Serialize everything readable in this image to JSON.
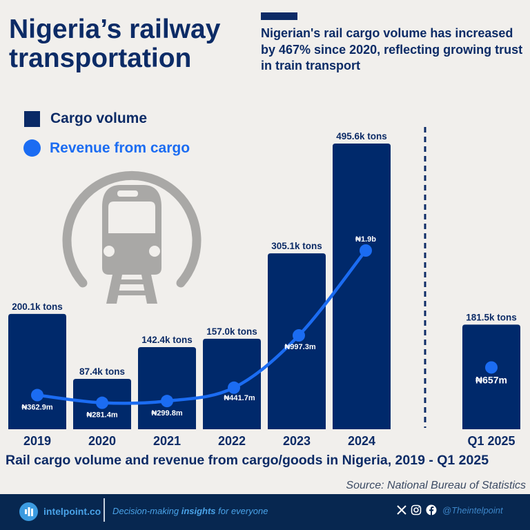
{
  "header": {
    "title_line1": "Nigeria’s railway",
    "title_line2": "transportation",
    "subtitle": "Nigerian's rail cargo volume has increased by 467% since 2020, reflecting growing trust in train transport"
  },
  "legend": {
    "cargo": "Cargo volume",
    "revenue": "Revenue from cargo"
  },
  "colors": {
    "bar": "#00296b",
    "line": "#1b6cf2",
    "title": "#0c2b66",
    "icon": "#a9a8a6",
    "footer": "#072750"
  },
  "chart_data": {
    "type": "bar",
    "title": "Rail cargo volume and revenue from cargo/goods in Nigeria, 2019 - Q1 2025",
    "categories": [
      "2019",
      "2020",
      "2021",
      "2022",
      "2023",
      "2024",
      "Q1 2025"
    ],
    "series": [
      {
        "name": "Cargo volume",
        "type": "bar",
        "unit": "k tons",
        "values": [
          200.1,
          87.4,
          142.4,
          157.0,
          305.1,
          495.6,
          181.5
        ],
        "labels": [
          "200.1k tons",
          "87.4k tons",
          "142.4k tons",
          "157.0k tons",
          "305.1k tons",
          "495.6k tons",
          "181.5k tons"
        ]
      },
      {
        "name": "Revenue from cargo",
        "type": "line",
        "unit": "₦ million",
        "values": [
          362.9,
          281.4,
          299.8,
          441.7,
          997.3,
          1900,
          657
        ],
        "labels": [
          "₦362.9m",
          "₦281.4m",
          "₦299.8m",
          "₦441.7m",
          "₦997.3m",
          "₦1.9b",
          "₦657m"
        ]
      }
    ],
    "notes": "Q1 2025 separated by dashed divider; revenue line connects 2019-2024 only",
    "xlabel": "",
    "ylabel": "",
    "grid": false
  },
  "caption": "Rail cargo volume and revenue from cargo/goods in Nigeria, 2019 - Q1 2025",
  "source": "Source: National Bureau of Statistics",
  "footer": {
    "brand": "intelpoint.co",
    "tagline_pre": "Decision-making ",
    "tagline_bold": "insights",
    "tagline_post": " for everyone",
    "handle": "@Theintelpoint",
    "icons": [
      "x-icon",
      "instagram-icon",
      "facebook-icon"
    ]
  }
}
